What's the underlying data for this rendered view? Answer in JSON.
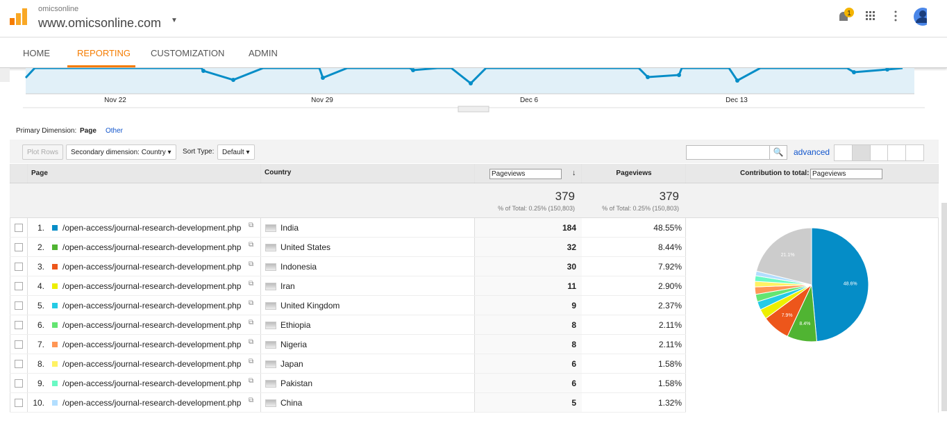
{
  "header": {
    "account": "omicsonline",
    "property": "www.omicsonline.com",
    "notifications": "1"
  },
  "nav": [
    "HOME",
    "REPORTING",
    "CUSTOMIZATION",
    "ADMIN"
  ],
  "trend": {
    "x_labels": [
      "Nov 22",
      "Nov 29",
      "Dec 6",
      "Dec 13"
    ]
  },
  "controls": {
    "primary_label": "Primary Dimension:",
    "primary_value": "Page",
    "other": "Other",
    "plot_rows": "Plot Rows",
    "secondary": "Secondary dimension: Country",
    "sort_label": "Sort Type:",
    "sort_value": "Default",
    "advanced": "advanced"
  },
  "table": {
    "headers": [
      "Page",
      "Country",
      "Pageviews",
      "Pageviews"
    ],
    "contribution_label": "Contribution to total:",
    "contribution_metric": "Pageviews",
    "totals": [
      {
        "value": "379",
        "note": "% of Total: 0.25% (150,803)"
      },
      {
        "value": "379",
        "note": "% of Total: 0.25% (150,803)"
      }
    ],
    "rows": [
      [
        "1.",
        "/open-access/journal-research-development.php",
        "India",
        "184",
        "48.55%"
      ],
      [
        "2.",
        "/open-access/journal-research-development.php",
        "United States",
        "32",
        "8.44%"
      ],
      [
        "3.",
        "/open-access/journal-research-development.php",
        "Indonesia",
        "30",
        "7.92%"
      ],
      [
        "4.",
        "/open-access/journal-research-development.php",
        "Iran",
        "11",
        "2.90%"
      ],
      [
        "5.",
        "/open-access/journal-research-development.php",
        "United Kingdom",
        "9",
        "2.37%"
      ],
      [
        "6.",
        "/open-access/journal-research-development.php",
        "Ethiopia",
        "8",
        "2.11%"
      ],
      [
        "7.",
        "/open-access/journal-research-development.php",
        "Nigeria",
        "8",
        "2.11%"
      ],
      [
        "8.",
        "/open-access/journal-research-development.php",
        "Japan",
        "6",
        "1.58%"
      ],
      [
        "9.",
        "/open-access/journal-research-development.php",
        "Pakistan",
        "6",
        "1.58%"
      ],
      [
        "10.",
        "/open-access/journal-research-development.php",
        "China",
        "5",
        "1.32%"
      ]
    ]
  },
  "chart_data": {
    "type": "pie",
    "values": [
      48.55,
      8.44,
      7.92,
      2.9,
      2.37,
      2.11,
      2.11,
      1.58,
      1.58,
      1.32,
      21.12
    ],
    "value_labels": [
      "48.6%",
      "8.4%",
      "7.9%",
      null,
      null,
      null,
      null,
      null,
      null,
      null,
      "21.1%"
    ],
    "colors": [
      "#058dc7",
      "#50b432",
      "#ed561b",
      "#edef00",
      "#24cbe5",
      "#64e572",
      "#ff9655",
      "#fff263",
      "#6af9c4",
      "#b2deff",
      "#cccccc"
    ]
  }
}
